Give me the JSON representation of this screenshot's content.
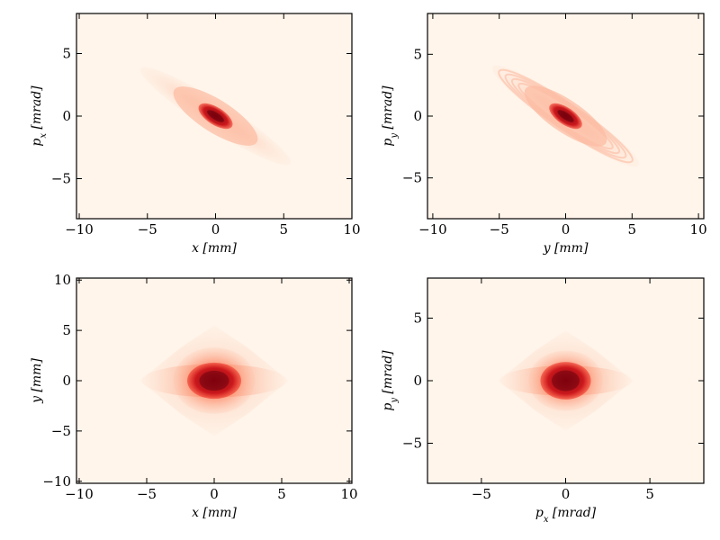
{
  "chart_data": [
    {
      "type": "heatmap",
      "xlabel": "x [mm]",
      "ylabel": "p_x [mrad]",
      "xlim": [
        -10.2,
        10
      ],
      "ylim": [
        -8.2,
        8.2
      ],
      "xticks": [
        -10,
        -5,
        0,
        5,
        10
      ],
      "yticks": [
        -5,
        0,
        5
      ],
      "x_tick_labels": [
        "−10",
        "−5",
        "0",
        "5",
        "10"
      ],
      "y_tick_labels": [
        "−5",
        "0",
        "5"
      ],
      "grid": false,
      "colormap": "Reds",
      "distribution": {
        "shape": "tilted-ellipse",
        "x_extent": [
          -5.5,
          5.5
        ],
        "y_extent": [
          -3.8,
          3.8
        ],
        "core_x_extent": [
          -1.5,
          1.5
        ],
        "core_y_extent": [
          -1.1,
          1.0
        ]
      }
    },
    {
      "type": "heatmap",
      "xlabel": "y [mm]",
      "ylabel": "p_y [mrad]",
      "xlim": [
        -10.4,
        10.4
      ],
      "ylim": [
        -8.3,
        8.3
      ],
      "xticks": [
        -10,
        -5,
        0,
        5,
        10
      ],
      "yticks": [
        -5,
        0,
        5
      ],
      "x_tick_labels": [
        "−10",
        "−5",
        "0",
        "5",
        "10"
      ],
      "y_tick_labels": [
        "−5",
        "0",
        "5"
      ],
      "grid": false,
      "colormap": "Reds",
      "distribution": {
        "shape": "tilted-ellipse-ringed",
        "x_extent": [
          -5.5,
          5.5
        ],
        "y_extent": [
          -4.0,
          4.0
        ],
        "core_x_extent": [
          -1.5,
          1.5
        ],
        "core_y_extent": [
          -1.1,
          1.0
        ]
      }
    },
    {
      "type": "heatmap",
      "xlabel": "x [mm]",
      "ylabel": "y [mm]",
      "xlim": [
        -10.2,
        10.2
      ],
      "ylim": [
        -10.2,
        10.2
      ],
      "xticks": [
        -10,
        -5,
        0,
        5,
        10
      ],
      "yticks": [
        -10,
        -5,
        0,
        5,
        10
      ],
      "x_tick_labels": [
        "−10",
        "−5",
        "0",
        "5",
        "10"
      ],
      "y_tick_labels": [
        "−10",
        "−5",
        "0",
        "5",
        "10"
      ],
      "grid": false,
      "colormap": "Reds",
      "distribution": {
        "shape": "diamond-with-dense-core",
        "x_extent": [
          -5.5,
          5.5
        ],
        "y_extent": [
          -5.5,
          5.5
        ],
        "core_x_extent": [
          -2.0,
          2.0
        ],
        "core_y_extent": [
          -1.8,
          1.8
        ]
      }
    },
    {
      "type": "heatmap",
      "xlabel": "p_x [mrad]",
      "ylabel": "p_y [mrad]",
      "xlim": [
        -8.2,
        8.2
      ],
      "ylim": [
        -8.2,
        8.2
      ],
      "xticks": [
        -5,
        0,
        5
      ],
      "yticks": [
        -5,
        0,
        5
      ],
      "x_tick_labels": [
        "−5",
        "0",
        "5"
      ],
      "y_tick_labels": [
        "−5",
        "0",
        "5"
      ],
      "grid": false,
      "colormap": "Reds",
      "distribution": {
        "shape": "diamond-with-dense-core",
        "x_extent": [
          -4.0,
          4.0
        ],
        "y_extent": [
          -4.0,
          4.0
        ],
        "core_x_extent": [
          -1.5,
          1.5
        ],
        "core_y_extent": [
          -1.5,
          1.5
        ]
      }
    }
  ]
}
